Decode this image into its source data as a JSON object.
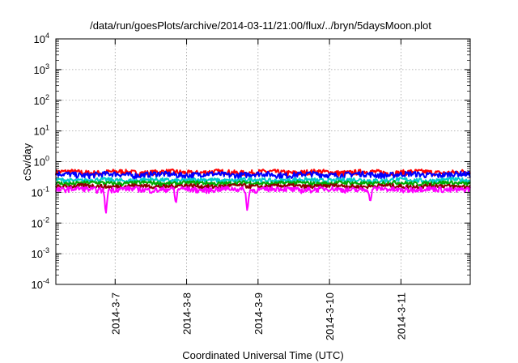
{
  "chart_data": {
    "type": "line",
    "title": "/data/run/goesPlots/archive/2014-03-11/21:00/flux/../bryn/5daysMoon.plot",
    "xlabel": "Coordinated Universal Time (UTC)",
    "ylabel": "cSv/day",
    "yscale": "log",
    "ylim": [
      0.0001,
      10000
    ],
    "xlim": [
      0,
      5.8
    ],
    "y_tick_values": [
      0.0001,
      0.001,
      0.01,
      0.1,
      1,
      10,
      100,
      1000,
      10000
    ],
    "y_tick_labels": [
      {
        "base": "10",
        "exp": "-4"
      },
      {
        "base": "10",
        "exp": "-3"
      },
      {
        "base": "10",
        "exp": "-2"
      },
      {
        "base": "10",
        "exp": "-1"
      },
      {
        "base": "10",
        "exp": "0"
      },
      {
        "base": "10",
        "exp": "1"
      },
      {
        "base": "10",
        "exp": "2"
      },
      {
        "base": "10",
        "exp": "3"
      },
      {
        "base": "10",
        "exp": "4"
      }
    ],
    "x_ticks": [
      {
        "x": 0.83,
        "label": "2014-3-7"
      },
      {
        "x": 1.83,
        "label": "2014-3-8"
      },
      {
        "x": 2.83,
        "label": "2014-3-9"
      },
      {
        "x": 3.83,
        "label": "2014-3-10"
      },
      {
        "x": 4.83,
        "label": "2014-3-11"
      }
    ],
    "grid": true,
    "series": [
      {
        "color": "#ff0000",
        "base": 0.45,
        "amp": 0.09,
        "spikes": []
      },
      {
        "color": "#0000ff",
        "base": 0.38,
        "amp": 0.08,
        "spikes": []
      },
      {
        "color": "#00cccc",
        "base": 0.25,
        "amp": 0.04,
        "spikes": []
      },
      {
        "color": "#00aa00",
        "base": 0.2,
        "amp": 0.03,
        "spikes": []
      },
      {
        "color": "#8b0000",
        "base": 0.16,
        "amp": 0.025,
        "spikes": []
      },
      {
        "color": "#ff00ff",
        "base": 0.125,
        "amp": 0.025,
        "spikes": [
          [
            0.7,
            0.018
          ],
          [
            1.68,
            0.04
          ],
          [
            2.68,
            0.022
          ],
          [
            4.4,
            0.045
          ]
        ]
      }
    ]
  }
}
